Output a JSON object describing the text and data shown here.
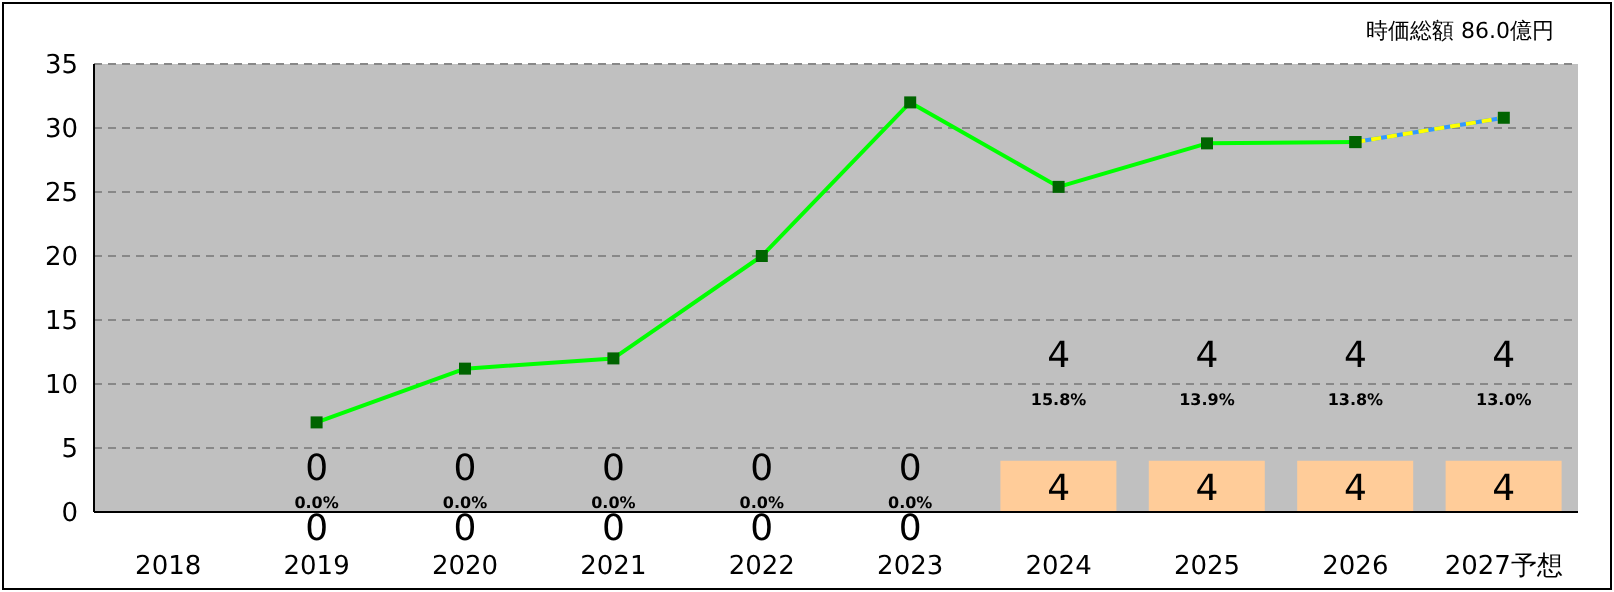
{
  "chart_data": {
    "type": "bar",
    "categories": [
      "2018",
      "2019",
      "2020",
      "2021",
      "2022",
      "2023",
      "2024",
      "2025",
      "2026",
      "2027予想"
    ],
    "series": [
      {
        "color": "#ffcc99",
        "values": [
          null,
          0,
          0,
          0,
          0,
          0,
          4,
          4,
          4,
          4
        ],
        "value_labels": [
          null,
          "0",
          "0",
          "0",
          "0",
          "0",
          "4",
          "4",
          "4",
          "4"
        ]
      },
      {
        "type": "line",
        "color": "#00ff00",
        "values": [
          null,
          7,
          11.2,
          12,
          20,
          32,
          25.4,
          28.8,
          28.9,
          null
        ]
      },
      {
        "type": "line",
        "color": "#ffff00",
        "line_style": "dashed",
        "values": [
          null,
          null,
          null,
          null,
          null,
          null,
          null,
          null,
          28.9,
          30.8
        ]
      }
    ],
    "ylim": [
      0,
      35
    ],
    "yticks": [
      0,
      5,
      10,
      15,
      20,
      25,
      30,
      35
    ],
    "grid": "y",
    "marker": "square",
    "annotations": [
      "時価総額  86.0億円",
      "0",
      "0",
      "0",
      "0",
      "0",
      "4",
      "4",
      "4",
      "4",
      "0.0%",
      "0.0%",
      "0.0%",
      "0.0%",
      "0.0%",
      "15.8%",
      "13.9%",
      "13.8%",
      "13.0%"
    ]
  }
}
